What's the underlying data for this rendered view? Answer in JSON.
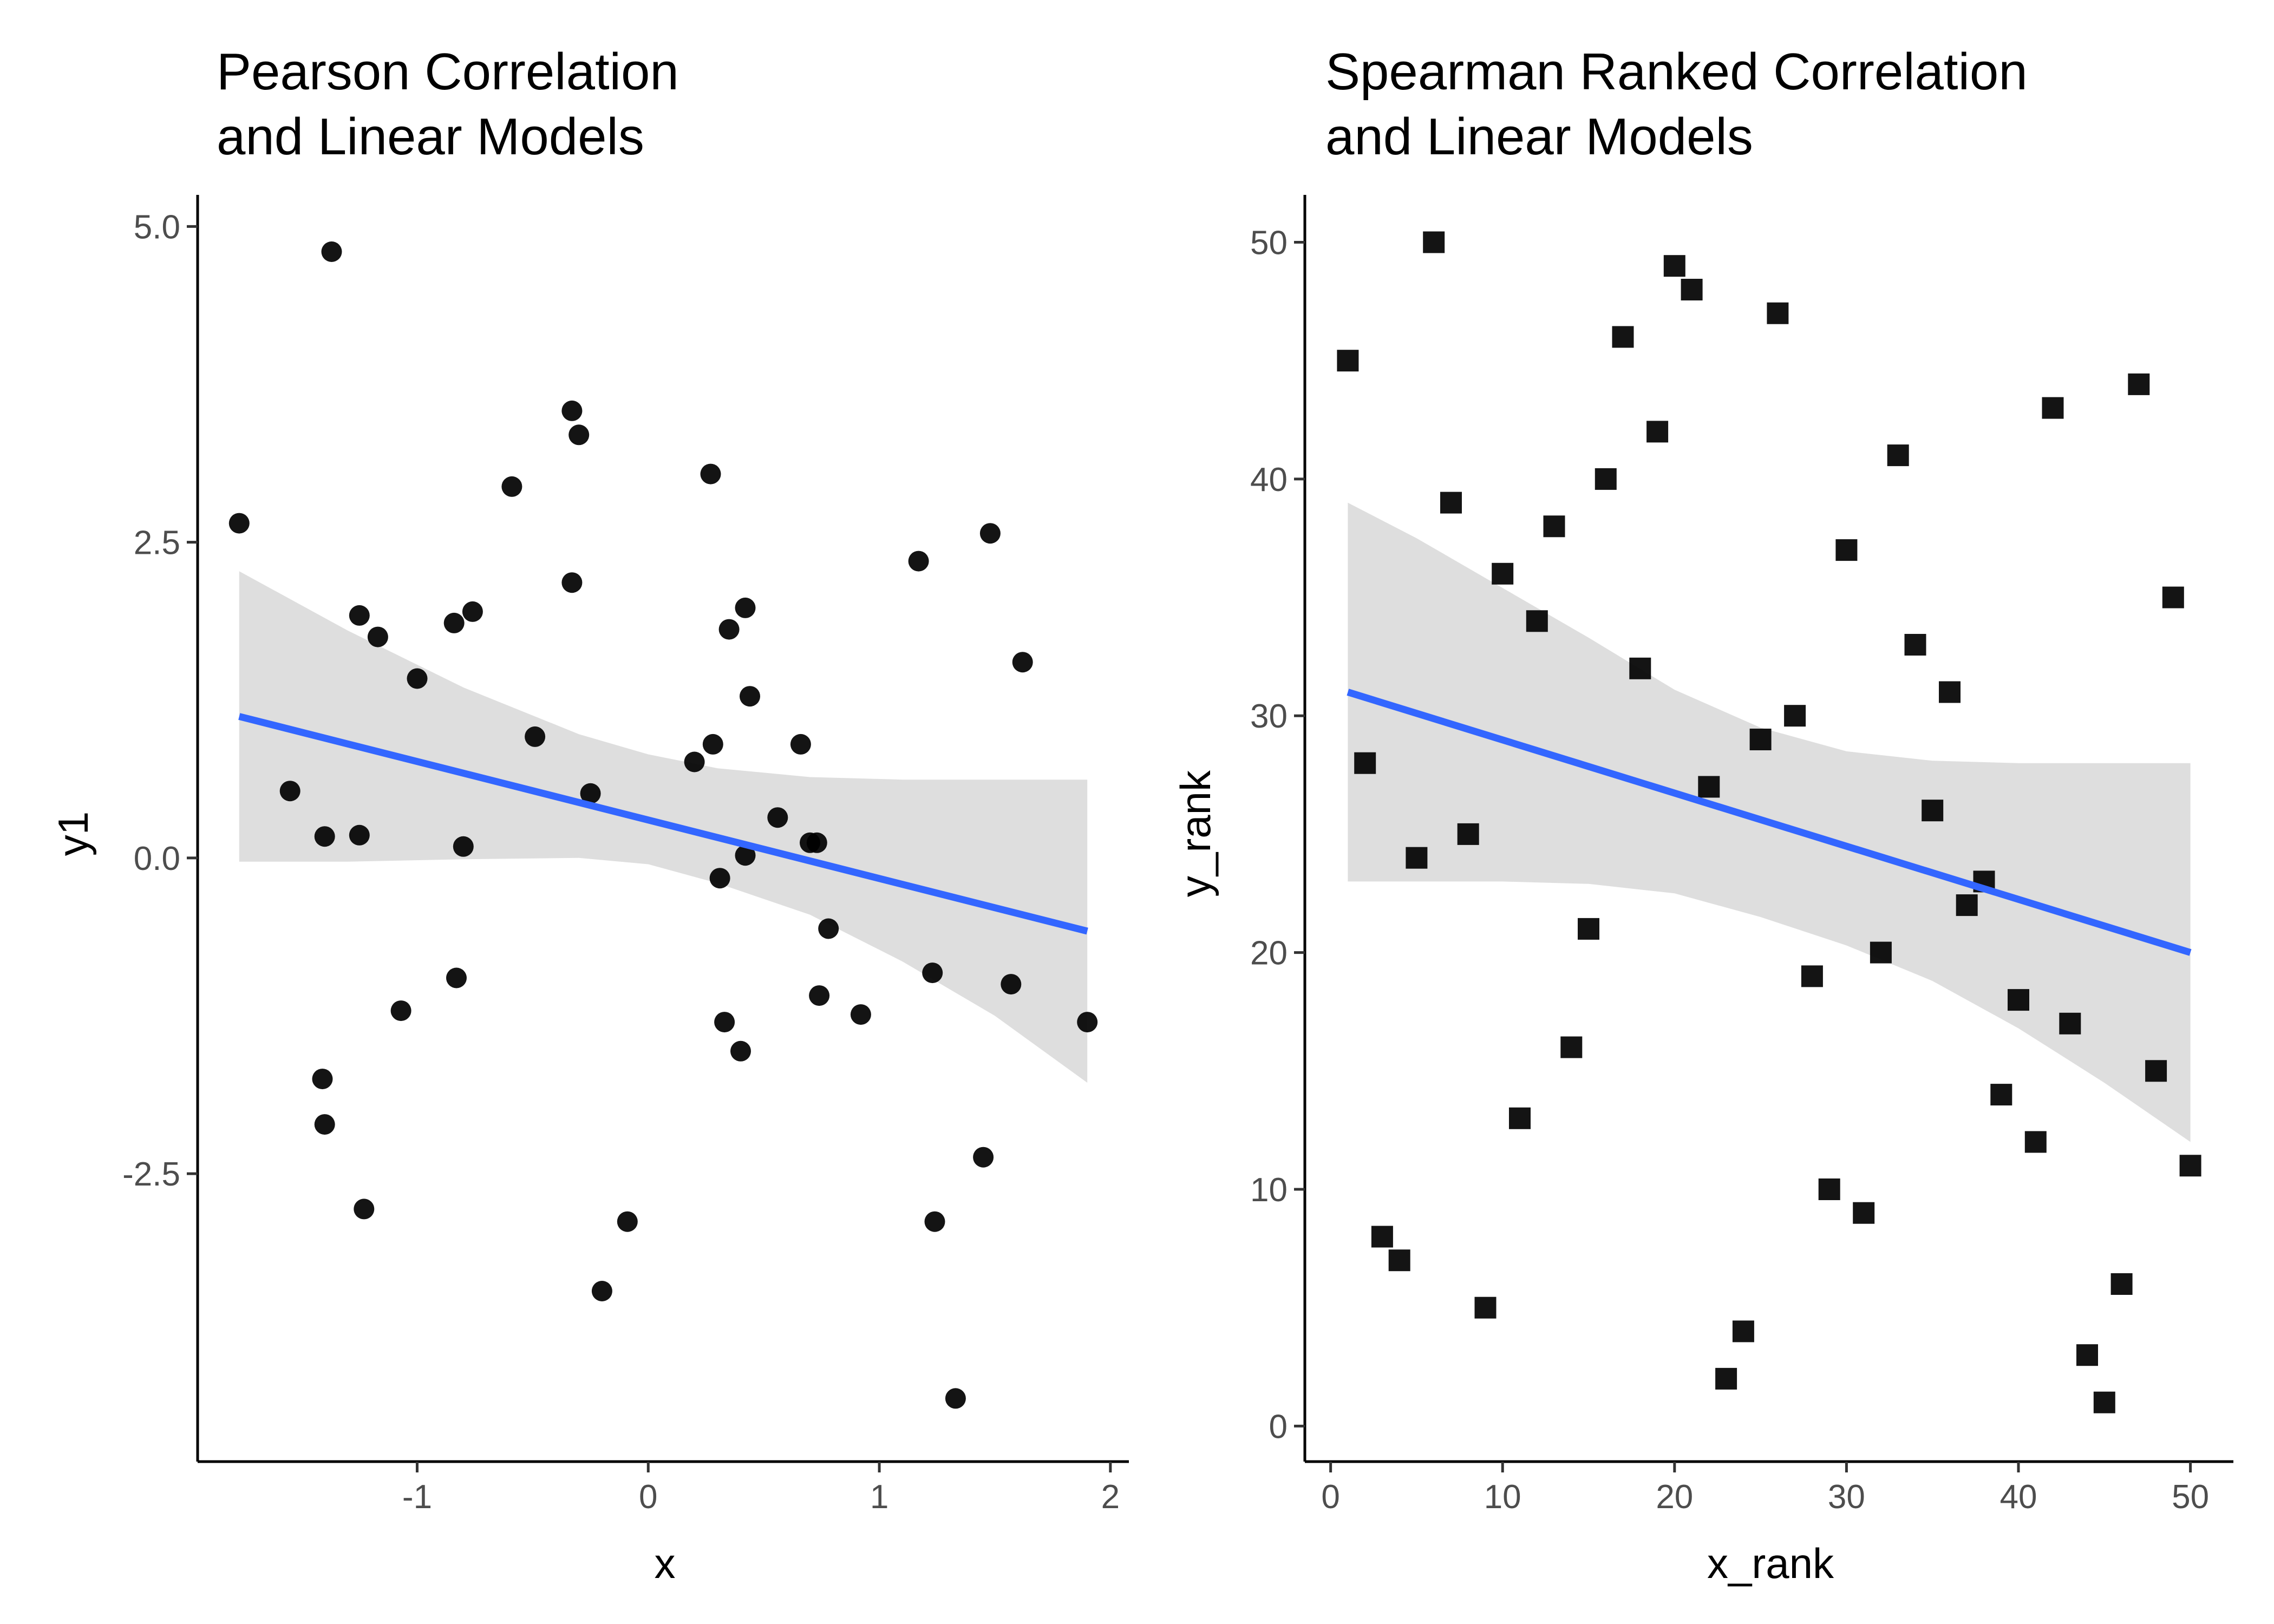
{
  "chart_data": [
    {
      "type": "scatter",
      "title": [
        "Pearson Correlation",
        "and Linear Models"
      ],
      "xlabel": "x",
      "ylabel": "y1",
      "xlim": [
        -1.95,
        2.08
      ],
      "ylim": [
        -4.78,
        5.25
      ],
      "xticks": [
        -1,
        0,
        1,
        2
      ],
      "xtick_labels": [
        "-1",
        "0",
        "1",
        "2"
      ],
      "yticks": [
        -2.5,
        0.0,
        2.5,
        5.0
      ],
      "ytick_labels": [
        "-2.5",
        "0.0",
        "2.5",
        "5.0"
      ],
      "grid": false,
      "legend": "none",
      "marker": "circle",
      "point_color": "#000000",
      "points": [
        [
          -1.77,
          2.65
        ],
        [
          -1.37,
          4.8
        ],
        [
          -1.55,
          0.53
        ],
        [
          -1.4,
          0.17
        ],
        [
          -1.25,
          0.18
        ],
        [
          -1.25,
          1.92
        ],
        [
          -1.17,
          1.75
        ],
        [
          -1.41,
          -1.75
        ],
        [
          -1.4,
          -2.11
        ],
        [
          -1.23,
          -2.78
        ],
        [
          -1.07,
          -1.21
        ],
        [
          -1.0,
          1.42
        ],
        [
          -0.84,
          1.86
        ],
        [
          -0.76,
          1.95
        ],
        [
          -0.83,
          -0.95
        ],
        [
          -0.8,
          0.09
        ],
        [
          -0.59,
          2.94
        ],
        [
          -0.49,
          0.96
        ],
        [
          -0.33,
          3.54
        ],
        [
          -0.3,
          3.35
        ],
        [
          -0.33,
          2.18
        ],
        [
          -0.25,
          0.51
        ],
        [
          -0.2,
          -3.43
        ],
        [
          -0.09,
          -2.88
        ],
        [
          0.2,
          0.76
        ],
        [
          0.27,
          3.04
        ],
        [
          0.28,
          0.9
        ],
        [
          0.31,
          -0.16
        ],
        [
          0.33,
          -1.3
        ],
        [
          0.35,
          1.81
        ],
        [
          0.4,
          -1.53
        ],
        [
          0.42,
          0.02
        ],
        [
          0.42,
          1.98
        ],
        [
          0.44,
          1.28
        ],
        [
          0.56,
          0.32
        ],
        [
          0.66,
          0.9
        ],
        [
          0.7,
          0.12
        ],
        [
          0.73,
          0.12
        ],
        [
          0.74,
          -1.09
        ],
        [
          0.78,
          -0.56
        ],
        [
          0.92,
          -1.24
        ],
        [
          1.17,
          2.35
        ],
        [
          1.23,
          -0.91
        ],
        [
          1.24,
          -2.88
        ],
        [
          1.33,
          -4.28
        ],
        [
          1.45,
          -2.37
        ],
        [
          1.48,
          2.57
        ],
        [
          1.57,
          -1.0
        ],
        [
          1.62,
          1.55
        ],
        [
          1.9,
          -1.3
        ]
      ],
      "regression": {
        "color": "#3366ff",
        "x": [
          -1.77,
          1.9
        ],
        "y": [
          1.12,
          -0.58
        ]
      },
      "confidence_band": {
        "color": "#d9d9d9",
        "x": [
          -1.77,
          -1.3,
          -0.8,
          -0.3,
          0.0,
          0.3,
          0.7,
          1.1,
          1.5,
          1.9
        ],
        "upper": [
          2.27,
          1.8,
          1.35,
          0.98,
          0.82,
          0.71,
          0.64,
          0.62,
          0.62,
          0.62
        ],
        "lower": [
          -0.03,
          -0.03,
          -0.01,
          0.0,
          -0.05,
          -0.2,
          -0.45,
          -0.82,
          -1.25,
          -1.78
        ]
      }
    },
    {
      "type": "scatter",
      "title": [
        "Spearman Ranked Correlation",
        "and Linear Models"
      ],
      "xlabel": "x_rank",
      "ylabel": "y_rank",
      "xlim": [
        -1.5,
        52.5
      ],
      "ylim": [
        -1.5,
        52.0
      ],
      "xticks": [
        0,
        10,
        20,
        30,
        40,
        50
      ],
      "xtick_labels": [
        "0",
        "10",
        "20",
        "30",
        "40",
        "50"
      ],
      "yticks": [
        0,
        10,
        20,
        30,
        40,
        50
      ],
      "ytick_labels": [
        "0",
        "10",
        "20",
        "30",
        "40",
        "50"
      ],
      "grid": false,
      "legend": "none",
      "marker": "square",
      "point_color": "#000000",
      "points": [
        [
          1,
          45
        ],
        [
          2,
          28
        ],
        [
          3,
          8
        ],
        [
          4,
          7
        ],
        [
          5,
          24
        ],
        [
          6,
          50
        ],
        [
          7,
          39
        ],
        [
          8,
          25
        ],
        [
          9,
          5
        ],
        [
          10,
          36
        ],
        [
          11,
          13
        ],
        [
          12,
          34
        ],
        [
          13,
          38
        ],
        [
          14,
          16
        ],
        [
          15,
          21
        ],
        [
          16,
          40
        ],
        [
          17,
          46
        ],
        [
          18,
          32
        ],
        [
          19,
          42
        ],
        [
          20,
          49
        ],
        [
          21,
          48
        ],
        [
          22,
          27
        ],
        [
          23,
          2
        ],
        [
          24,
          4
        ],
        [
          25,
          29
        ],
        [
          26,
          47
        ],
        [
          27,
          30
        ],
        [
          28,
          19
        ],
        [
          29,
          10
        ],
        [
          30,
          37
        ],
        [
          31,
          9
        ],
        [
          32,
          20
        ],
        [
          33,
          41
        ],
        [
          34,
          33
        ],
        [
          35,
          26
        ],
        [
          36,
          31
        ],
        [
          37,
          22
        ],
        [
          38,
          23
        ],
        [
          39,
          14
        ],
        [
          40,
          18
        ],
        [
          41,
          12
        ],
        [
          42,
          43
        ],
        [
          43,
          17
        ],
        [
          44,
          3
        ],
        [
          45,
          1
        ],
        [
          46,
          6
        ],
        [
          47,
          44
        ],
        [
          48,
          15
        ],
        [
          49,
          35
        ],
        [
          50,
          11
        ]
      ],
      "regression": {
        "color": "#3366ff",
        "x": [
          1,
          50
        ],
        "y": [
          31.0,
          20.0
        ]
      },
      "confidence_band": {
        "color": "#d9d9d9",
        "x": [
          1,
          5,
          10,
          15,
          20,
          25,
          30,
          35,
          40,
          45,
          50
        ],
        "upper": [
          39.0,
          37.5,
          35.4,
          33.3,
          31.1,
          29.5,
          28.5,
          28.1,
          28.0,
          28.0,
          28.0
        ],
        "lower": [
          23.0,
          23.0,
          23.0,
          22.9,
          22.5,
          21.5,
          20.3,
          18.8,
          16.8,
          14.5,
          12.0
        ]
      }
    }
  ]
}
